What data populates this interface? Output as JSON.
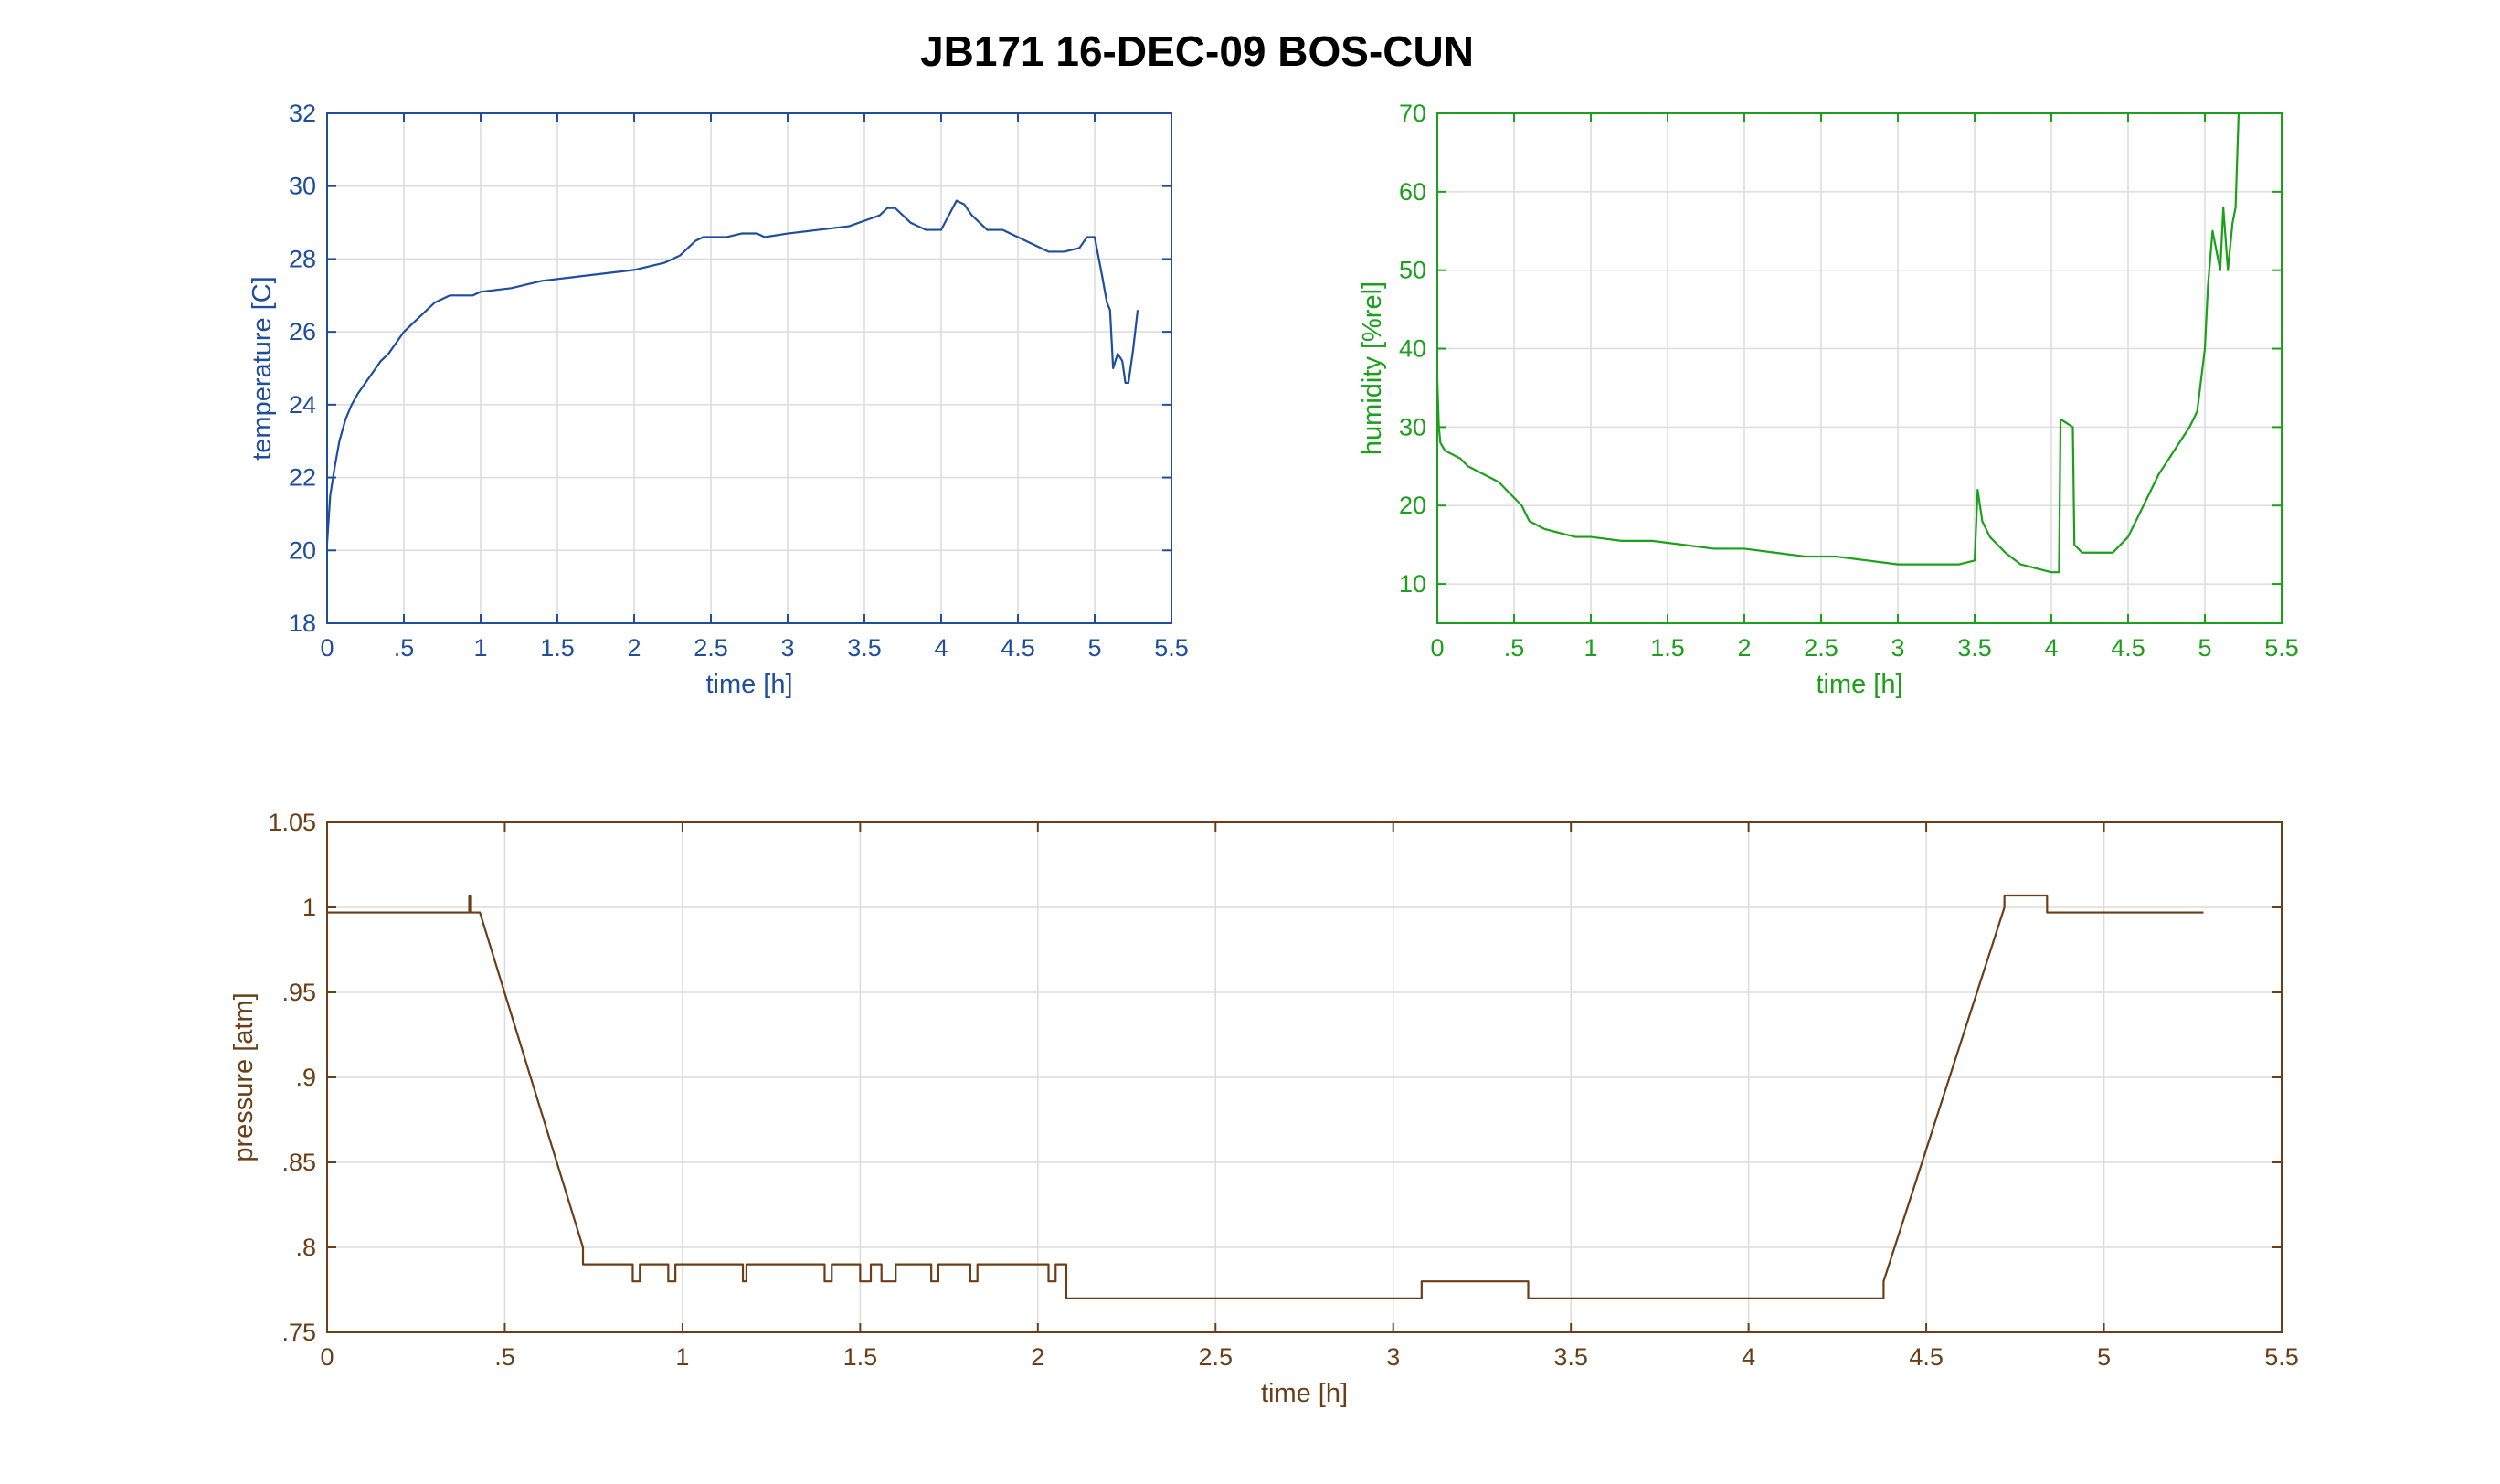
{
  "figure": {
    "title": "JB171 16-DEC-09 BOS-CUN"
  },
  "chart_data": [
    {
      "id": "temperature",
      "type": "line",
      "xlabel": "time [h]",
      "ylabel": "temperature [C]",
      "xlim": [
        0,
        5.5
      ],
      "ylim": [
        18,
        32
      ],
      "xticks": [
        0,
        0.5,
        1,
        1.5,
        2,
        2.5,
        3,
        3.5,
        4,
        4.5,
        5,
        5.5
      ],
      "yticks": [
        18,
        20,
        22,
        24,
        26,
        28,
        30,
        32
      ],
      "grid": true,
      "color": "#1f4e9e",
      "series": [
        {
          "x": [
            0,
            0.02,
            0.05,
            0.08,
            0.12,
            0.16,
            0.2,
            0.25,
            0.3,
            0.35,
            0.4,
            0.45,
            0.5,
            0.55,
            0.6,
            0.65,
            0.7,
            0.75,
            0.8,
            0.85,
            0.9,
            0.95,
            1.0,
            1.2,
            1.4,
            1.6,
            1.8,
            2.0,
            2.2,
            2.3,
            2.35,
            2.4,
            2.45,
            2.5,
            2.6,
            2.7,
            2.8,
            2.85,
            3.0,
            3.2,
            3.4,
            3.6,
            3.65,
            3.7,
            3.75,
            3.8,
            3.85,
            3.9,
            4.0,
            4.05,
            4.1,
            4.15,
            4.2,
            4.25,
            4.3,
            4.4,
            4.5,
            4.6,
            4.7,
            4.8,
            4.9,
            4.95,
            5.0,
            5.05,
            5.08,
            5.1,
            5.12,
            5.15,
            5.18,
            5.2,
            5.22,
            5.25,
            5.28
          ],
          "y": [
            20.2,
            21.5,
            22.3,
            23.0,
            23.6,
            24.0,
            24.3,
            24.6,
            24.9,
            25.2,
            25.4,
            25.7,
            26.0,
            26.2,
            26.4,
            26.6,
            26.8,
            26.9,
            27.0,
            27.0,
            27.0,
            27.0,
            27.1,
            27.2,
            27.4,
            27.5,
            27.6,
            27.7,
            27.9,
            28.1,
            28.3,
            28.5,
            28.6,
            28.6,
            28.6,
            28.7,
            28.7,
            28.6,
            28.7,
            28.8,
            28.9,
            29.2,
            29.4,
            29.4,
            29.2,
            29.0,
            28.9,
            28.8,
            28.8,
            29.2,
            29.6,
            29.5,
            29.2,
            29.0,
            28.8,
            28.8,
            28.6,
            28.4,
            28.2,
            28.2,
            28.3,
            28.6,
            28.6,
            27.5,
            26.8,
            26.6,
            25.0,
            25.4,
            25.2,
            24.6,
            24.6,
            25.5,
            26.6
          ]
        }
      ]
    },
    {
      "id": "humidity",
      "type": "line",
      "xlabel": "time [h]",
      "ylabel": "humidity [%rel]",
      "xlim": [
        0,
        5.5
      ],
      "ylim": [
        5,
        70
      ],
      "xticks": [
        0,
        0.5,
        1,
        1.5,
        2,
        2.5,
        3,
        3.5,
        4,
        4.5,
        5,
        5.5
      ],
      "yticks": [
        10,
        20,
        30,
        40,
        50,
        60,
        70
      ],
      "grid": true,
      "color": "#1aa01a",
      "series": [
        {
          "x": [
            0,
            0.01,
            0.02,
            0.05,
            0.1,
            0.15,
            0.2,
            0.3,
            0.4,
            0.5,
            0.55,
            0.6,
            0.7,
            0.8,
            0.9,
            1.0,
            1.2,
            1.4,
            1.6,
            1.8,
            2.0,
            2.2,
            2.4,
            2.6,
            2.8,
            3.0,
            3.2,
            3.4,
            3.5,
            3.52,
            3.55,
            3.6,
            3.7,
            3.8,
            3.9,
            4.0,
            4.05,
            4.06,
            4.1,
            4.14,
            4.15,
            4.2,
            4.3,
            4.4,
            4.5,
            4.6,
            4.7,
            4.8,
            4.9,
            4.95,
            5.0,
            5.02,
            5.05,
            5.08,
            5.1,
            5.12,
            5.15,
            5.18,
            5.2,
            5.22
          ],
          "y": [
            36,
            30,
            28,
            27,
            26.5,
            26,
            25,
            24,
            23,
            21,
            20,
            18,
            17,
            16.5,
            16,
            16,
            15.5,
            15.5,
            15,
            14.5,
            14.5,
            14,
            13.5,
            13.5,
            13,
            12.5,
            12.5,
            12.5,
            13,
            22,
            18,
            16,
            14,
            12.5,
            12,
            11.5,
            11.5,
            31,
            30.5,
            30,
            15,
            14,
            14,
            14,
            16,
            20,
            24,
            27,
            30,
            32,
            40,
            48,
            55,
            52,
            50,
            58,
            50,
            56,
            58,
            70
          ]
        }
      ]
    },
    {
      "id": "pressure",
      "type": "line",
      "xlabel": "time [h]",
      "ylabel": "pressure [atm]",
      "xlim": [
        0,
        5.5
      ],
      "ylim": [
        0.75,
        1.05
      ],
      "xticks": [
        0,
        0.5,
        1,
        1.5,
        2,
        2.5,
        3,
        3.5,
        4,
        4.5,
        5,
        5.5
      ],
      "yticks": [
        0.75,
        0.8,
        0.85,
        0.9,
        0.95,
        1,
        1.05
      ],
      "grid": true,
      "color": "#6b3e17",
      "series": [
        {
          "x": [
            0,
            0.4,
            0.4,
            0.405,
            0.405,
            0.43,
            0.72,
            0.72,
            0.86,
            0.86,
            0.88,
            0.88,
            0.96,
            0.96,
            0.98,
            0.98,
            1.17,
            1.17,
            1.18,
            1.18,
            1.4,
            1.4,
            1.42,
            1.42,
            1.5,
            1.5,
            1.53,
            1.53,
            1.56,
            1.56,
            1.6,
            1.6,
            1.7,
            1.7,
            1.72,
            1.72,
            1.81,
            1.81,
            1.83,
            1.83,
            2.03,
            2.03,
            2.05,
            2.05,
            2.08,
            2.08,
            3.08,
            3.08,
            3.38,
            3.38,
            4.38,
            4.38,
            4.72,
            4.72,
            4.84,
            4.84,
            5.28
          ],
          "y": [
            0.997,
            0.997,
            1.007,
            1.007,
            0.997,
            0.997,
            0.8,
            0.79,
            0.79,
            0.78,
            0.78,
            0.79,
            0.79,
            0.78,
            0.78,
            0.79,
            0.79,
            0.78,
            0.78,
            0.79,
            0.79,
            0.78,
            0.78,
            0.79,
            0.79,
            0.78,
            0.78,
            0.79,
            0.79,
            0.78,
            0.78,
            0.79,
            0.79,
            0.78,
            0.78,
            0.79,
            0.79,
            0.78,
            0.78,
            0.79,
            0.79,
            0.78,
            0.78,
            0.79,
            0.79,
            0.77,
            0.77,
            0.78,
            0.78,
            0.77,
            0.77,
            0.78,
            1.0,
            1.007,
            1.007,
            0.997,
            0.997
          ]
        }
      ]
    }
  ]
}
